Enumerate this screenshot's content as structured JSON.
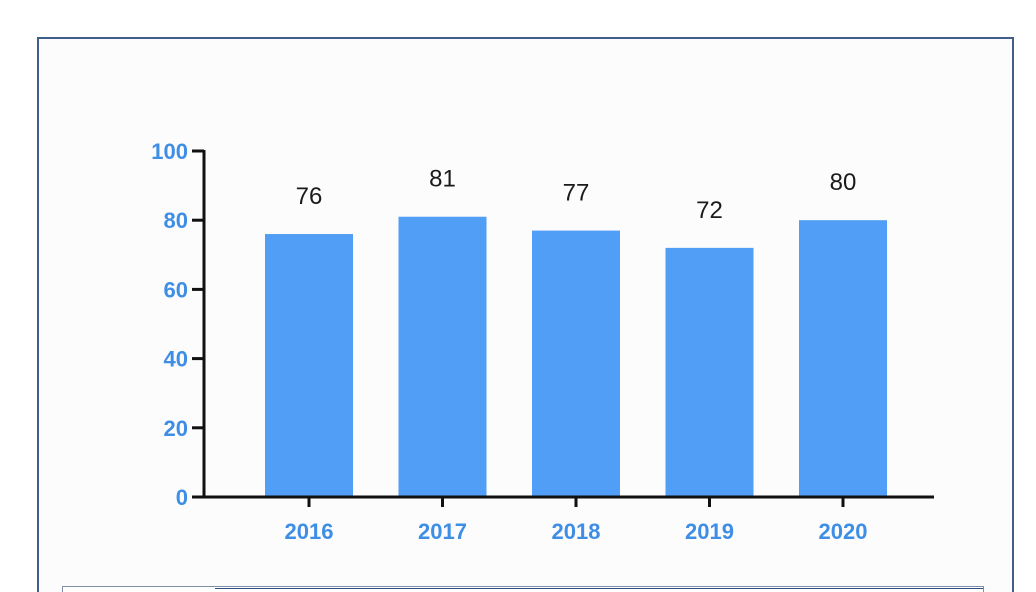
{
  "chart_data": {
    "type": "bar",
    "categories": [
      "2016",
      "2017",
      "2018",
      "2019",
      "2020"
    ],
    "values": [
      76,
      81,
      77,
      72,
      80
    ],
    "data_labels": [
      "76",
      "81",
      "77",
      "72",
      "80"
    ],
    "ylim": [
      0,
      100
    ],
    "yticks": [
      "0",
      "20",
      "40",
      "60",
      "80",
      "100"
    ],
    "title": "",
    "xlabel": "",
    "ylabel": "",
    "grid": false,
    "legend": "none",
    "colors": {
      "bar": "#509ef5",
      "tick_label": "#3e8ee6",
      "data_label": "#1a1a1a",
      "axis": "#111111"
    }
  }
}
